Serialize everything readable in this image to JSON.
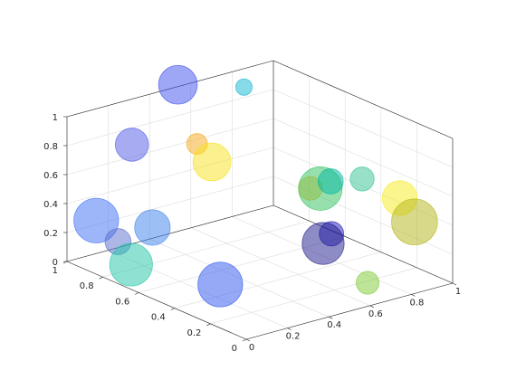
{
  "chart_data": {
    "type": "scatter",
    "variant": "3d-bubble",
    "title": "",
    "xlabel": "",
    "ylabel": "",
    "zlabel": "",
    "xlim": [
      0,
      1
    ],
    "ylim": [
      0,
      1
    ],
    "zlim": [
      0,
      1
    ],
    "grid": true,
    "legend": "none",
    "x_ticks": [
      "0",
      "0.2",
      "0.4",
      "0.6",
      "0.8",
      "1"
    ],
    "y_ticks": [
      "0",
      "0.2",
      "0.4",
      "0.6",
      "0.8",
      "1"
    ],
    "z_ticks": [
      "0",
      "0.2",
      "0.4",
      "0.6",
      "0.8",
      "1"
    ],
    "colormap": "parula",
    "bubble_alpha": 0.5,
    "points": [
      {
        "x": 0.02,
        "y": 0.86,
        "z": 0.35,
        "size": 0.85,
        "color": "#3b6ef5"
      },
      {
        "x": 0.03,
        "y": 0.75,
        "z": 0.26,
        "size": 0.38,
        "color": "#5a6ecf"
      },
      {
        "x": 0.05,
        "y": 0.7,
        "z": 0.12,
        "size": 0.8,
        "color": "#20c5a5"
      },
      {
        "x": 0.28,
        "y": 0.96,
        "z": 0.72,
        "size": 0.56,
        "color": "#4f57e6"
      },
      {
        "x": 0.11,
        "y": 0.65,
        "z": 0.38,
        "size": 0.62,
        "color": "#3a82ec"
      },
      {
        "x": 0.1,
        "y": 0.26,
        "z": 0.2,
        "size": 0.85,
        "color": "#2c54ee"
      },
      {
        "x": 0.52,
        "y": 0.98,
        "z": 1.03,
        "size": 0.7,
        "color": "#3e50eb"
      },
      {
        "x": 0.3,
        "y": 0.62,
        "z": 0.9,
        "size": 0.25,
        "color": "#f6a91c"
      },
      {
        "x": 0.32,
        "y": 0.56,
        "z": 0.8,
        "size": 0.68,
        "color": "#f7e11d"
      },
      {
        "x": 0.39,
        "y": 0.02,
        "z": 0.5,
        "size": 0.78,
        "color": "#1d1a8c"
      },
      {
        "x": 0.84,
        "y": 0.98,
        "z": 0.89,
        "size": 0.14,
        "color": "#10b5d0"
      },
      {
        "x": 0.55,
        "y": 0.22,
        "z": 0.71,
        "size": 0.82,
        "color": "#2fc25c"
      },
      {
        "x": 0.6,
        "y": 0.22,
        "z": 0.74,
        "size": 0.36,
        "color": "#00b6a2"
      },
      {
        "x": 0.77,
        "y": 0.24,
        "z": 0.68,
        "size": 0.33,
        "color": "#33c193"
      },
      {
        "x": 0.78,
        "y": 0.54,
        "z": 0.45,
        "size": 0.32,
        "color": "#f8b523"
      },
      {
        "x": 0.63,
        "y": 0.25,
        "z": 0.35,
        "size": 0.34,
        "color": "#1e16ba"
      },
      {
        "x": 0.9,
        "y": 0.18,
        "z": 0.53,
        "size": 0.6,
        "color": "#f7eb1c"
      },
      {
        "x": 0.85,
        "y": 0.04,
        "z": 0.46,
        "size": 0.88,
        "color": "#b2b314"
      },
      {
        "x": 0.64,
        "y": 0.06,
        "z": 0.11,
        "size": 0.3,
        "color": "#7ec932"
      }
    ]
  }
}
